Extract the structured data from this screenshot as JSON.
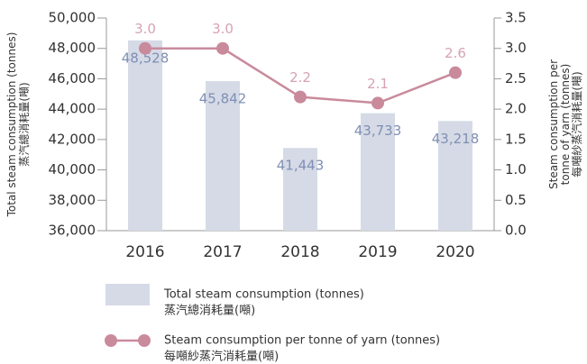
{
  "chart_data": {
    "type": "bar+line",
    "categories": [
      "2016",
      "2017",
      "2018",
      "2019",
      "2020"
    ],
    "series": [
      {
        "name": [
          "Total steam consumption (tonnes)",
          "蒸汽總消耗量(噸)"
        ],
        "type": "bar",
        "color": "#d5dae6",
        "label_color": "#7f8fb3",
        "values": [
          48528,
          45842,
          41443,
          43733,
          43218
        ],
        "value_labels": [
          "48,528",
          "45,842",
          "41,443",
          "43,733",
          "43,218"
        ]
      },
      {
        "name": [
          "Steam consumption per tonne of yarn (tonnes)",
          "每噸紗蒸汽消耗量(噸)"
        ],
        "type": "line",
        "axis": "y2",
        "color": "#c98a9c",
        "label_color": "#d6a3b1",
        "values": [
          3.0,
          3.0,
          2.2,
          2.1,
          2.6
        ],
        "value_labels": [
          "3.0",
          "3.0",
          "2.2",
          "2.1",
          "2.6"
        ]
      }
    ],
    "ylabel": [
      "Total steam consumption (tonnes)",
      "蒸汽總消耗量(噸)"
    ],
    "y2label": [
      "Steam consumption per",
      "tonne of yarn (tonnes)",
      "每噸紗蒸汽消耗量(噸)"
    ],
    "ylim": [
      36000,
      50000
    ],
    "yticks": [
      {
        "value": 36000,
        "label": "36,000"
      },
      {
        "value": 38000,
        "label": "38,000"
      },
      {
        "value": 40000,
        "label": "40,000"
      },
      {
        "value": 42000,
        "label": "42,000"
      },
      {
        "value": 44000,
        "label": "44,000"
      },
      {
        "value": 46000,
        "label": "46,000"
      },
      {
        "value": 48000,
        "label": "48,000"
      },
      {
        "value": 50000,
        "label": "50,000"
      }
    ],
    "y2lim": [
      0,
      3.5
    ],
    "y2ticks": [
      {
        "value": 0,
        "label": "0.0"
      },
      0.5,
      {
        "value": 1,
        "label": "1.0"
      },
      1.5,
      {
        "value": 2,
        "label": "2.0"
      },
      2.5,
      {
        "value": 3,
        "label": "3.0"
      },
      3.5
    ]
  }
}
